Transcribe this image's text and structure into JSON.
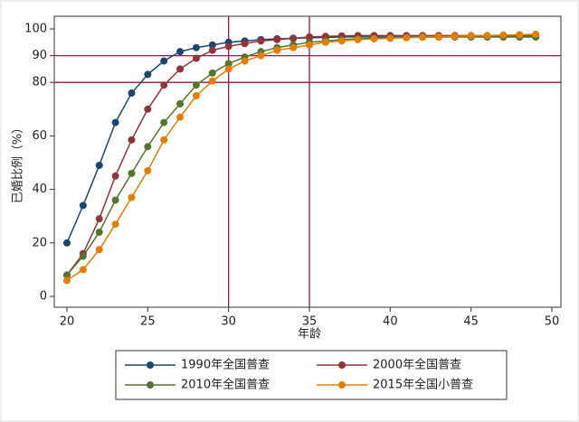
{
  "chart_data": {
    "type": "line",
    "x_label": "年龄",
    "y_label": "已婚比例（%）",
    "x": [
      20,
      21,
      22,
      23,
      24,
      25,
      26,
      27,
      28,
      29,
      30,
      31,
      32,
      33,
      34,
      35,
      36,
      37,
      38,
      39,
      40,
      41,
      42,
      43,
      44,
      45,
      46,
      47,
      48,
      49
    ],
    "series": [
      {
        "name": "1990年全国普查",
        "color": "#1a476f",
        "values": [
          20,
          34,
          49,
          65,
          76,
          83,
          88,
          91.5,
          93,
          94,
          95,
          95.5,
          96,
          96.3,
          96.5,
          96.7,
          96.8,
          97,
          97,
          97,
          97,
          97,
          97,
          97,
          97,
          97,
          97,
          97,
          97,
          97
        ]
      },
      {
        "name": "2000年全国普查",
        "color": "#90353b",
        "values": [
          8,
          16,
          29,
          45,
          58.5,
          70,
          79,
          85,
          89,
          92,
          93.5,
          94.5,
          95.5,
          96,
          96.5,
          97,
          97.2,
          97.4,
          97.5,
          97.5,
          97.5,
          97.5,
          97.5,
          97.5,
          97.5,
          97.5,
          97.5,
          97.5,
          97.5,
          97.5
        ]
      },
      {
        "name": "2010年全国普查",
        "color": "#55752f",
        "values": [
          8,
          15,
          24,
          36,
          46,
          56,
          65,
          72,
          79,
          83.5,
          87,
          89.5,
          91.5,
          93,
          94,
          95,
          95.5,
          96,
          96.3,
          96.5,
          96.7,
          96.8,
          96.9,
          97,
          97,
          97,
          97,
          97,
          97,
          97
        ]
      },
      {
        "name": "2015年全国小普查",
        "color": "#e37e00",
        "values": [
          6,
          10,
          17.5,
          27,
          37,
          47,
          58.5,
          67,
          75,
          80.5,
          85,
          88,
          90,
          92,
          93,
          94,
          95,
          95.5,
          96,
          96.3,
          96.5,
          96.7,
          96.9,
          97,
          97.2,
          97.4,
          97.5,
          97.7,
          97.8,
          98
        ]
      }
    ],
    "xlim": [
      20,
      50
    ],
    "xticks": [
      20,
      25,
      30,
      35,
      40,
      45,
      50
    ],
    "ylim": [
      0,
      100
    ],
    "yticks": [
      0,
      20,
      40,
      60,
      80,
      90,
      100
    ],
    "ref_lines": {
      "color": "#8b1a4a",
      "y": [
        80,
        90
      ],
      "x": [
        30,
        35
      ]
    },
    "legend": "bottom"
  }
}
